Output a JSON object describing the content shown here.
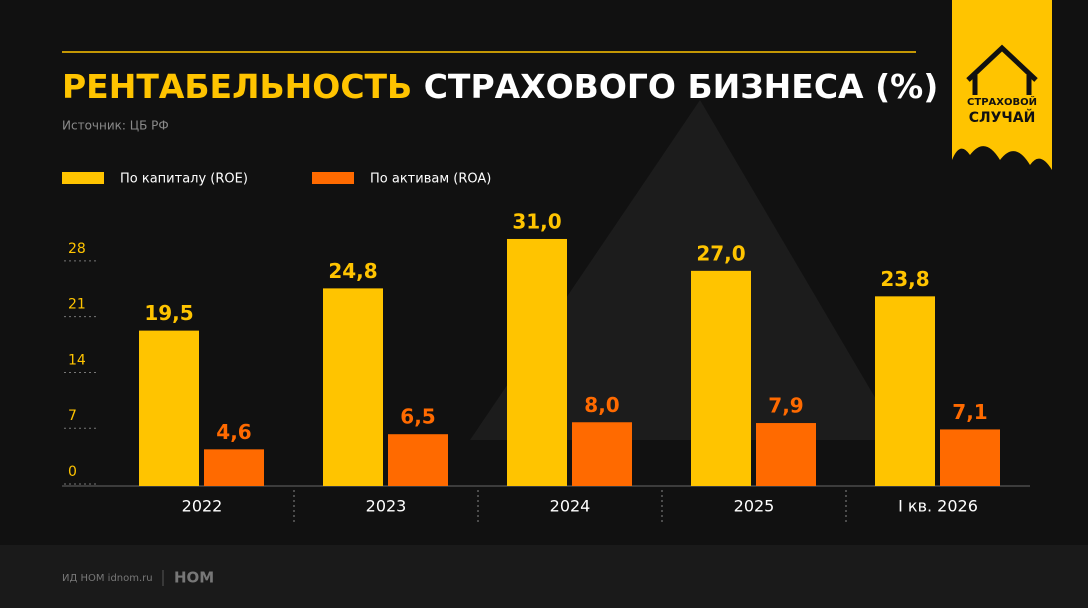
{
  "chart_data": {
    "type": "bar",
    "title": [
      "РЕНТАБЕЛЬНОСТЬ",
      "СТРАХОВОГО БИЗНЕСА (%)"
    ],
    "subtitle": "Источник: ЦБ РФ",
    "categories": [
      "2022",
      "2023",
      "2024",
      "2025",
      "I кв. 2026"
    ],
    "series": [
      {
        "name": "По капиталу (ROE)",
        "color": "#ffc400",
        "values": [
          19.5,
          24.8,
          31.0,
          27.0,
          23.8
        ],
        "value_labels": [
          "19,5",
          "24,8",
          "31,0",
          "27,0",
          "23,8"
        ]
      },
      {
        "name": "По активам (ROA)",
        "color": "#ff6a00",
        "values": [
          4.6,
          6.5,
          8.0,
          7.9,
          7.1
        ],
        "value_labels": [
          "4,6",
          "6,5",
          "8,0",
          "7,9",
          "7,1"
        ]
      }
    ],
    "ylim": [
      0,
      32
    ],
    "yticks": [
      0,
      7,
      14,
      21,
      28
    ],
    "logo": [
      "СТРАХОВОЙ",
      "СЛУЧАЙ"
    ],
    "footer": {
      "source": "ИД НОМ idnom.ru",
      "brand": "НОМ"
    }
  }
}
